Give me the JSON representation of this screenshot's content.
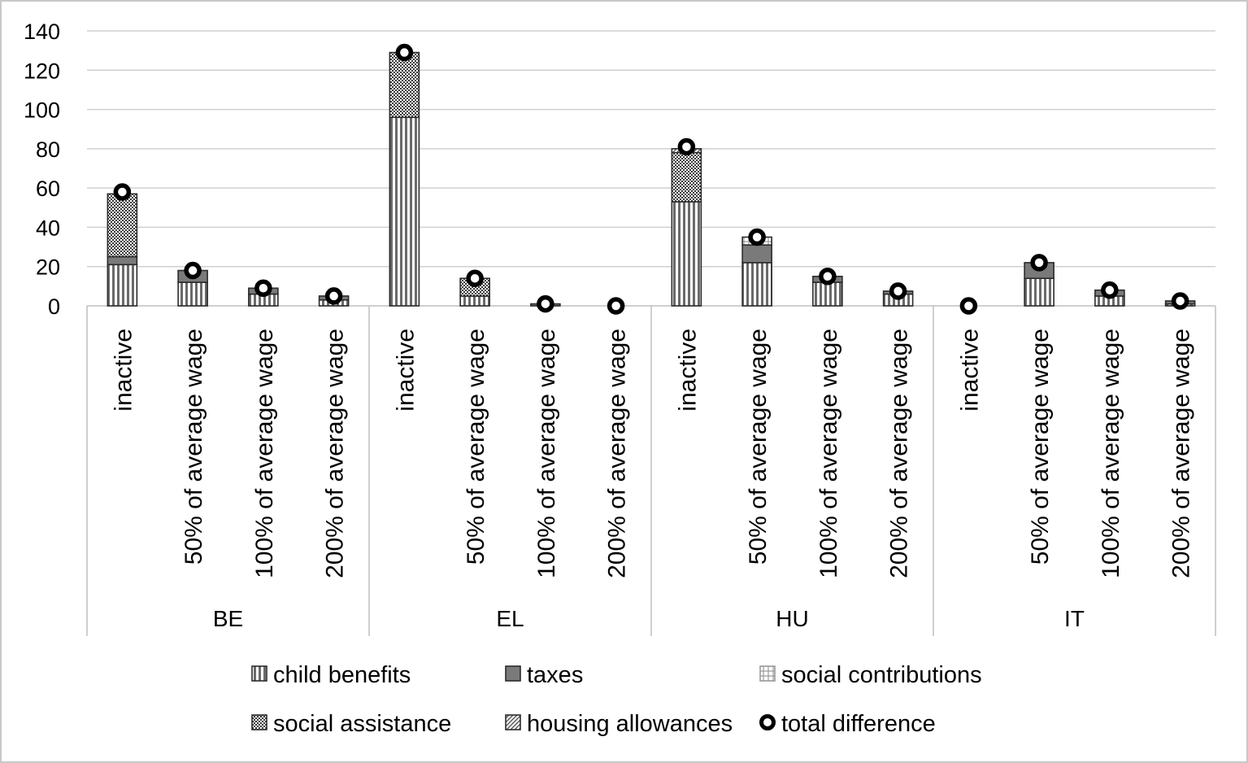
{
  "chart_data": {
    "type": "bar",
    "stacked": true,
    "title": "",
    "xlabel": "",
    "ylabel": "",
    "ylim": [
      0,
      140
    ],
    "yticks": [
      0,
      20,
      40,
      60,
      80,
      100,
      120,
      140
    ],
    "grid": true,
    "legend_position": "bottom",
    "groups": [
      "BE",
      "EL",
      "HU",
      "IT"
    ],
    "categories": [
      "inactive",
      "50% of average wage",
      "100% of average wage",
      "200% of average wage"
    ],
    "series": [
      {
        "name": "child benefits",
        "pattern": "vertical-stripes",
        "values": {
          "BE": [
            21,
            12,
            6,
            3
          ],
          "EL": [
            96,
            5,
            0,
            0
          ],
          "HU": [
            53,
            22,
            12,
            6
          ],
          "IT": [
            0,
            14,
            5,
            1
          ]
        }
      },
      {
        "name": "taxes",
        "pattern": "solid-gray",
        "values": {
          "BE": [
            4,
            6,
            3,
            2
          ],
          "EL": [
            0,
            0,
            1,
            0
          ],
          "HU": [
            0,
            9,
            3,
            1.5
          ],
          "IT": [
            0,
            8,
            3,
            1.5
          ]
        }
      },
      {
        "name": "social contributions",
        "pattern": "grid",
        "values": {
          "BE": [
            0,
            0,
            0,
            0
          ],
          "EL": [
            0,
            0,
            0,
            0
          ],
          "HU": [
            0,
            4,
            0,
            0
          ],
          "IT": [
            0,
            0,
            0,
            0
          ]
        }
      },
      {
        "name": "social assistance",
        "pattern": "dots",
        "values": {
          "BE": [
            32,
            0,
            0,
            0
          ],
          "EL": [
            33,
            9,
            0,
            0
          ],
          "HU": [
            25,
            0,
            0,
            0
          ],
          "IT": [
            0,
            0,
            0,
            0
          ]
        }
      },
      {
        "name": "housing allowances",
        "pattern": "diagonal",
        "values": {
          "BE": [
            0,
            0,
            0,
            0
          ],
          "EL": [
            0,
            0,
            0,
            0
          ],
          "HU": [
            2,
            0,
            0,
            0
          ],
          "IT": [
            0,
            0,
            0,
            0
          ]
        }
      },
      {
        "name": "total difference",
        "marker": "ring",
        "values": {
          "BE": [
            58,
            18,
            9,
            5
          ],
          "EL": [
            129,
            14,
            1,
            0
          ],
          "HU": [
            81,
            35,
            15,
            7.5
          ],
          "IT": [
            0,
            22,
            8,
            2.5
          ]
        }
      }
    ]
  }
}
